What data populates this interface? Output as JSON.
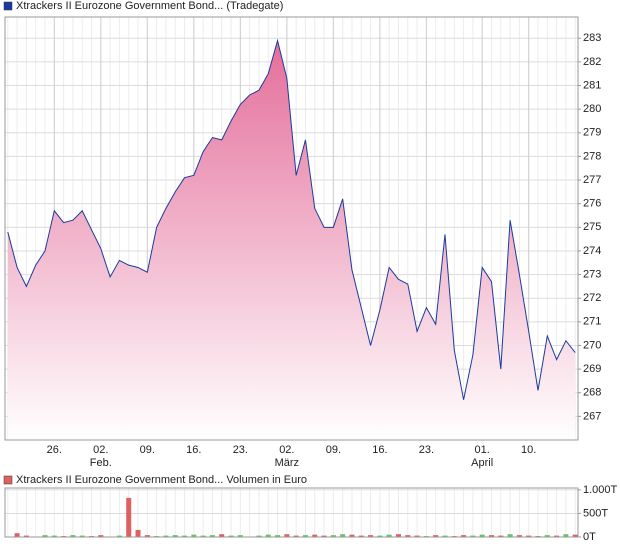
{
  "chart_data": [
    {
      "type": "area",
      "x": [
        0,
        1,
        2,
        3,
        4,
        5,
        6,
        7,
        8,
        9,
        10,
        11,
        12,
        13,
        14,
        15,
        16,
        17,
        18,
        19,
        20,
        21,
        22,
        23,
        24,
        25,
        26,
        27,
        28,
        29,
        30,
        31,
        32,
        33,
        34,
        35,
        36,
        37,
        38,
        39,
        40,
        41,
        42,
        43,
        44,
        45,
        46,
        47,
        48,
        49,
        50,
        51,
        52,
        53,
        54,
        55,
        56,
        57,
        58,
        59,
        60,
        61
      ],
      "series": [
        {
          "name": "Xtrackers II Eurozone Government Bond... (Tradegate)",
          "color": "#1b3a9e",
          "fill_top": "#e46e9a",
          "values": [
            274.8,
            273.3,
            272.5,
            273.4,
            274.0,
            275.7,
            275.2,
            275.3,
            275.7,
            274.9,
            274.1,
            272.9,
            273.6,
            273.4,
            273.3,
            273.1,
            275.0,
            275.8,
            276.5,
            277.1,
            277.2,
            278.2,
            278.8,
            278.7,
            279.5,
            280.2,
            280.6,
            280.8,
            281.5,
            282.9,
            281.3,
            277.2,
            278.7,
            275.8,
            275.0,
            275.0,
            276.2,
            273.2,
            271.6,
            270.0,
            271.5,
            273.3,
            272.8,
            272.6,
            270.6,
            271.6,
            270.9,
            274.7,
            269.8,
            267.7,
            269.6,
            273.3,
            272.7,
            269.0,
            275.3,
            273.0,
            270.6,
            268.1,
            270.4,
            269.4,
            270.2,
            269.7
          ]
        }
      ],
      "xlim": [
        -0.3,
        61.3
      ],
      "xticks": [
        {
          "value": 5,
          "label": "26."
        },
        {
          "value": 10,
          "label": "02."
        },
        {
          "value": 15,
          "label": "09."
        },
        {
          "value": 20,
          "label": "16."
        },
        {
          "value": 25,
          "label": "23."
        },
        {
          "value": 30,
          "label": "02."
        },
        {
          "value": 35,
          "label": "09."
        },
        {
          "value": 40,
          "label": "16."
        },
        {
          "value": 45,
          "label": "23."
        },
        {
          "value": 51,
          "label": "01."
        },
        {
          "value": 56,
          "label": "10."
        }
      ],
      "month_ticks": [
        {
          "value": 10,
          "label": "Feb."
        },
        {
          "value": 30,
          "label": "März"
        },
        {
          "value": 51,
          "label": "April"
        }
      ],
      "ylim": [
        266.0,
        283.9
      ],
      "yticks": [
        267,
        268,
        269,
        270,
        271,
        272,
        273,
        274,
        275,
        276,
        277,
        278,
        279,
        280,
        281,
        282,
        283
      ],
      "grid": true,
      "minor_grid": true
    },
    {
      "type": "bar",
      "x": [
        0,
        1,
        2,
        3,
        4,
        5,
        6,
        7,
        8,
        9,
        10,
        11,
        12,
        13,
        14,
        15,
        16,
        17,
        18,
        19,
        20,
        21,
        22,
        23,
        24,
        25,
        26,
        27,
        28,
        29,
        30,
        31,
        32,
        33,
        34,
        35,
        36,
        37,
        38,
        39,
        40,
        41,
        42,
        43,
        44,
        45,
        46,
        47,
        48,
        49,
        50,
        51,
        52,
        53,
        54,
        55,
        56,
        57,
        58,
        59,
        60,
        61
      ],
      "series": [
        {
          "name": "Xtrackers II Eurozone Government Bond... Volumen in Euro",
          "color": "#e06060",
          "up_color": "#60c860",
          "values": [
            0,
            80,
            30,
            0,
            40,
            30,
            20,
            40,
            30,
            20,
            40,
            0,
            30,
            830,
            150,
            40,
            20,
            30,
            40,
            30,
            50,
            30,
            40,
            60,
            30,
            40,
            0,
            30,
            50,
            40,
            60,
            30,
            40,
            50,
            30,
            40,
            60,
            50,
            30,
            40,
            30,
            50,
            60,
            40,
            30,
            20,
            40,
            30,
            20,
            40,
            30,
            50,
            40,
            30,
            60,
            40,
            30,
            20,
            40,
            30,
            60,
            50
          ]
        }
      ],
      "xlim": [
        -0.3,
        61.3
      ],
      "ylim": [
        0,
        1040
      ],
      "yticks": [
        {
          "value": 0,
          "label": "0T"
        },
        {
          "value": 500,
          "label": "500T"
        },
        {
          "value": 1000,
          "label": "1.000T"
        }
      ],
      "grid": true,
      "minor_grid": true
    }
  ]
}
